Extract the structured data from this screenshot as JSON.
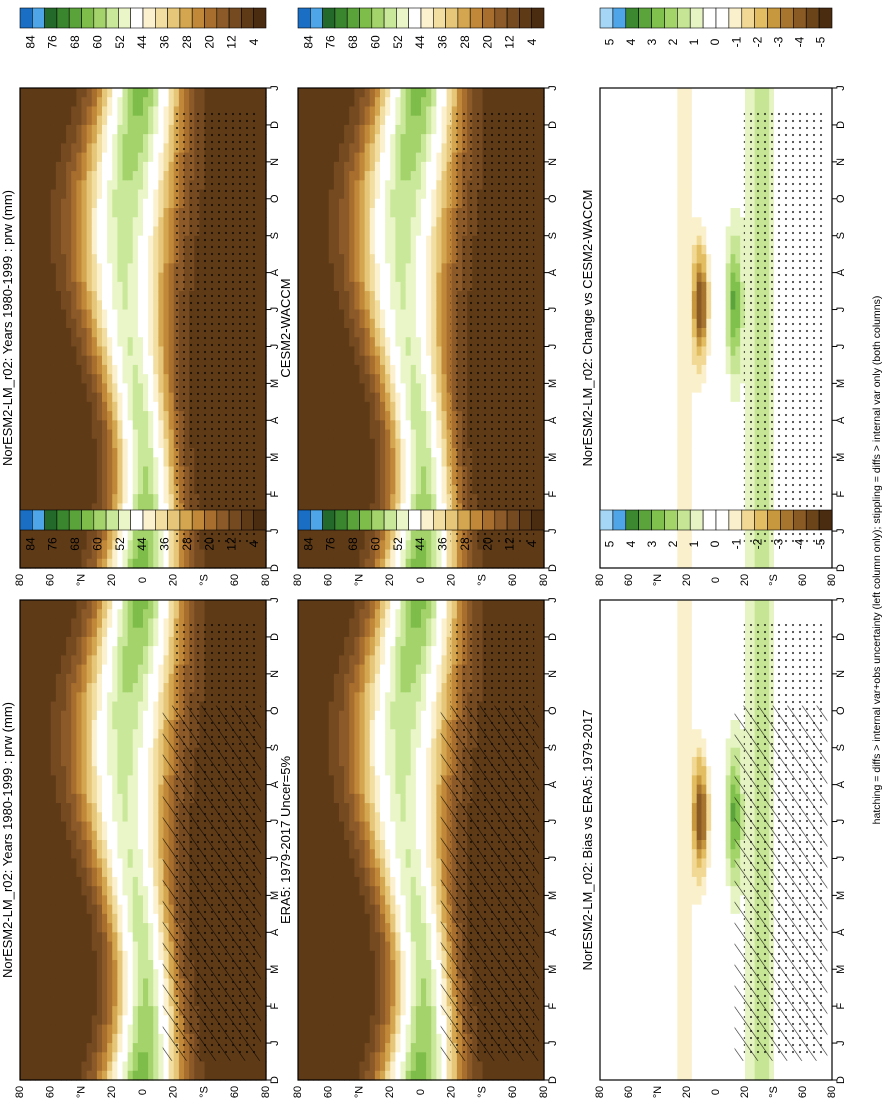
{
  "figure": {
    "caption": "hatching = diffs > internal var+obs uncertainty (left column only); stippling = diffs > internal var only (both columns)"
  },
  "colors": {
    "prw": [
      "#4a2c10",
      "#5e3a17",
      "#754a20",
      "#8c5a28",
      "#a86e2e",
      "#c08838",
      "#d4a650",
      "#e6c678",
      "#f2dea0",
      "#fbf1cf",
      "#ffffff",
      "#eaf6c8",
      "#c9e89a",
      "#a4d36c",
      "#7fbd4a",
      "#5aa23a",
      "#3a862f",
      "#22692a",
      "#4ea6e8",
      "#1a6fc4"
    ],
    "diff": [
      "#4a2c10",
      "#6b4419",
      "#8a5a24",
      "#a8752f",
      "#c8983e",
      "#e2bd62",
      "#f1d995",
      "#faf0cb",
      "#ffffff",
      "#ffffff",
      "#e5f4c2",
      "#c6e695",
      "#a2d46a",
      "#80c04c",
      "#5ba43b",
      "#3c8830",
      "#4ea6e8",
      "#a6d6f6"
    ]
  },
  "panels": [
    {
      "title": "NorESM2-LM_r02: Years 1980-1999 : prw (mm)",
      "kind": "abs",
      "hatch": true,
      "stipple": true
    },
    {
      "title": "NorESM2-LM_r02: Years 1980-1999 : prw (mm)",
      "kind": "abs",
      "hatch": false,
      "stipple": true
    },
    {
      "title": "ERA5: 1979-2017 Uncer=5%",
      "kind": "abs",
      "hatch": true,
      "stipple": true
    },
    {
      "title": "CESM2-WACCM",
      "kind": "abs",
      "hatch": false,
      "stipple": true
    },
    {
      "title": "NorESM2-LM_r02: Bias vs ERA5: 1979-2017",
      "kind": "diff",
      "hatch": true,
      "stipple": true
    },
    {
      "title": "NorESM2-LM_r02: Change vs CESM2-WACCM",
      "kind": "diff",
      "hatch": false,
      "stipple": true
    }
  ],
  "chart_data": {
    "type": "heatmap",
    "variable": "prw (mm)",
    "x_ticks": [
      "D",
      "J",
      "F",
      "M",
      "A",
      "M",
      "J",
      "J",
      "A",
      "S",
      "O",
      "N",
      "D",
      "J"
    ],
    "y_ticks": [
      "80",
      "60",
      "°N",
      "20",
      "0",
      "20",
      "°S",
      "60",
      "80"
    ],
    "colorbar_abs": {
      "ticks": [
        "84",
        "76",
        "68",
        "60",
        "52",
        "44",
        "36",
        "28",
        "20",
        "12",
        "4"
      ]
    },
    "colorbar_diff": {
      "ticks": [
        "5",
        "4",
        "3",
        "2",
        "1",
        "0",
        "-1",
        "-2",
        "-3",
        "-4",
        "-5"
      ]
    },
    "abs_levels_mm": [
      4,
      8,
      12,
      16,
      20,
      24,
      28,
      32,
      36,
      40,
      44,
      48,
      52,
      56,
      60,
      64,
      68,
      72,
      76,
      80,
      84
    ]
  }
}
